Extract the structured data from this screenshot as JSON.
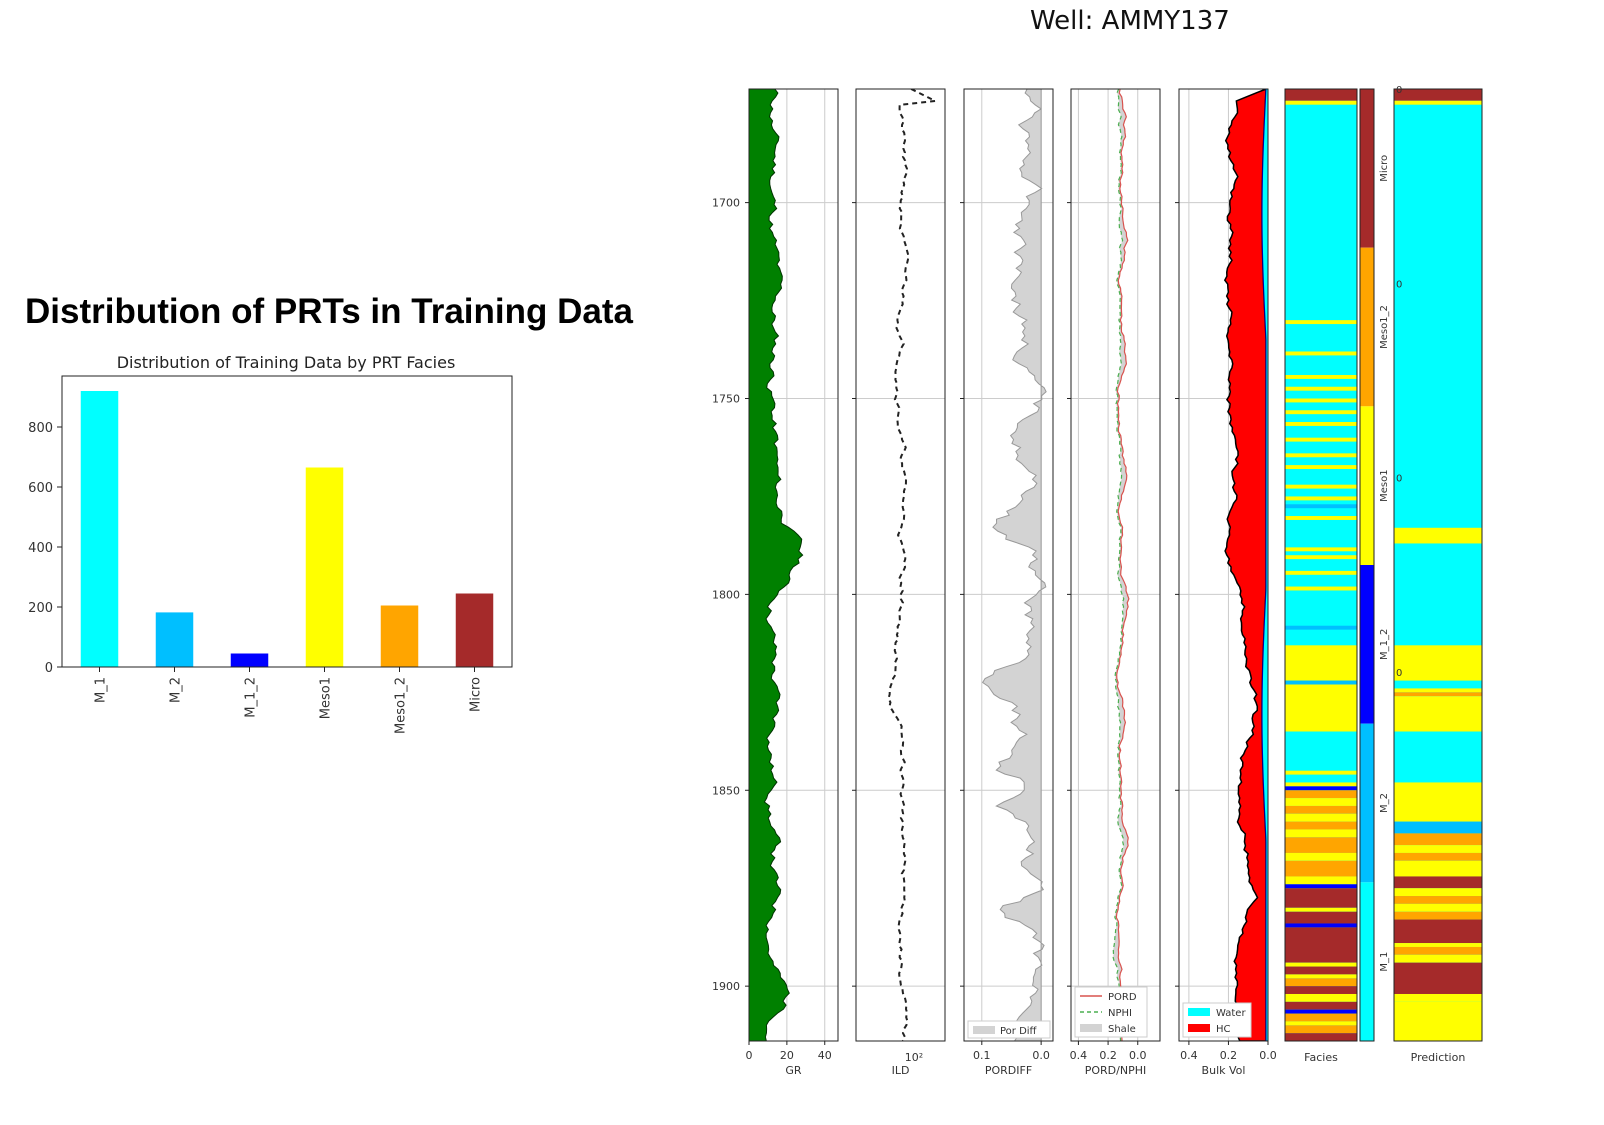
{
  "main_title": "Distribution of PRTs in Training Data",
  "well_title": "Well: AMMY137",
  "chart_data": [
    {
      "type": "bar",
      "title": "Distribution of Training Data by PRT Facies",
      "categories": [
        "M_1",
        "M_2",
        "M_1_2",
        "Meso1",
        "Meso1_2",
        "Micro"
      ],
      "values": [
        920,
        182,
        45,
        665,
        205,
        245
      ],
      "colors": [
        "#00ffff",
        "#00bfff",
        "#0000ff",
        "#ffff00",
        "#ffa500",
        "#a52a2a"
      ],
      "ylim": [
        0,
        970
      ],
      "yticks": [
        0,
        200,
        400,
        600,
        800
      ],
      "xlabel": "",
      "ylabel": ""
    },
    {
      "type": "line",
      "title": "Well: AMMY137",
      "depth_range": [
        1671,
        1914
      ],
      "depth_ticks": [
        1700,
        1750,
        1800,
        1850,
        1900
      ],
      "tracks": [
        {
          "name": "GR",
          "xlim": [
            0,
            47
          ],
          "xticks": [
            "0",
            "20",
            "40"
          ],
          "fill": "#008000"
        },
        {
          "name": "ILD",
          "xticks": [
            "10²"
          ],
          "scale": "log",
          "line": "dashed"
        },
        {
          "name": "PORDIFF",
          "xlim": [
            0.13,
            -0.02
          ],
          "xticks": [
            "0.1",
            "0.0"
          ],
          "legend": [
            "Por Diff"
          ]
        },
        {
          "name": "PORD/NPHI",
          "xlim": [
            0.45,
            -0.15
          ],
          "xticks": [
            "0.4",
            "0.2",
            "0.0"
          ],
          "legend": [
            "PORD",
            "NPHI",
            "Shale"
          ]
        },
        {
          "name": "Bulk Vol",
          "xlim": [
            0.45,
            0.0
          ],
          "xticks": [
            "0.4",
            "0.2",
            "0.0"
          ],
          "legend": [
            "Water",
            "HC"
          ]
        },
        {
          "name": "Facies"
        },
        {
          "name": "Prediction"
        }
      ],
      "colorbar": {
        "labels": [
          "Micro",
          "Meso1_2",
          "Meso1",
          "M_1_2",
          "M_2",
          "M_1"
        ],
        "colors": [
          "#a52a2a",
          "#ffa500",
          "#ffff00",
          "#0000ff",
          "#00bfff",
          "#00ffff"
        ],
        "ticks": [
          "0",
          "0",
          "0",
          "0"
        ]
      },
      "legend_colors": {
        "por_diff": "#d3d3d3",
        "pord": "#d9534f",
        "nphi": "#4caf50",
        "shale": "#d3d3d3",
        "water": "#00ffff",
        "hc": "#ff0000"
      }
    }
  ]
}
